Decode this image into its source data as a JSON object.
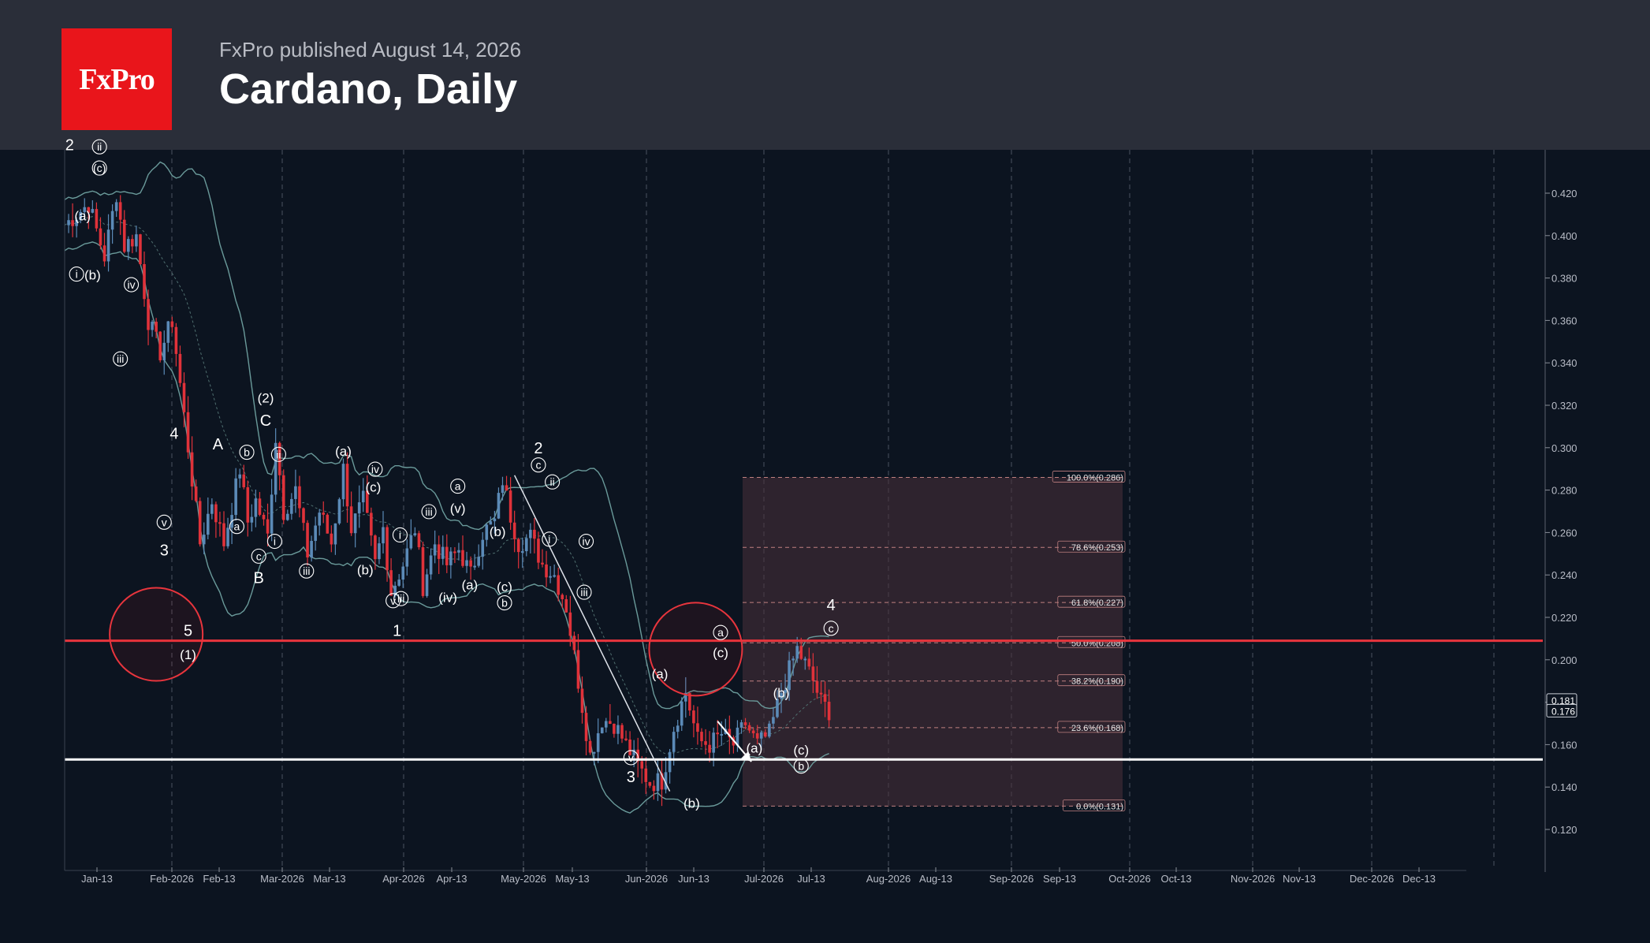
{
  "header": {
    "logo_text": "FxPro",
    "published": "FxPro published August 14, 2026",
    "title": "Cardano, Daily"
  },
  "colors": {
    "background": "#0c1420",
    "header_bg": "#2a2e39",
    "brand_red": "#e9151b",
    "bull_candle": "#5b8ab7",
    "bear_candle": "#e0323a",
    "bollinger": "#6a9a9a",
    "resistance_line": "#e8353d",
    "support_line": "#ffffff",
    "fib_box": "#4a2f3a"
  },
  "chart_data": {
    "type": "candlestick",
    "instrument": "Cardano",
    "timeframe": "Daily",
    "ylim": [
      0.105,
      0.445
    ],
    "y_ticks": [
      "0.120",
      "0.140",
      "0.160",
      "0.180",
      "0.200",
      "0.220",
      "0.240",
      "0.260",
      "0.280",
      "0.300",
      "0.320",
      "0.340",
      "0.360",
      "0.380",
      "0.400",
      "0.420"
    ],
    "x_ticks": [
      "Jan-13",
      "Feb-2026",
      "Feb-13",
      "Mar-2026",
      "Mar-13",
      "Apr-2026",
      "Apr-13",
      "May-2026",
      "May-13",
      "Jun-2026",
      "Jun-13",
      "Jul-2026",
      "Jul-13",
      "Aug-2026",
      "Aug-13",
      "Sep-2026",
      "Sep-13",
      "Oct-2026",
      "Oct-13",
      "Nov-2026",
      "Nov-13",
      "Dec-2026",
      "Dec-13"
    ],
    "price_path": [
      [
        0,
        0.405
      ],
      [
        6,
        0.415
      ],
      [
        10,
        0.39
      ],
      [
        13,
        0.42
      ],
      [
        15,
        0.395
      ],
      [
        18,
        0.4
      ],
      [
        21,
        0.36
      ],
      [
        24,
        0.345
      ],
      [
        27,
        0.36
      ],
      [
        31,
        0.3
      ],
      [
        34,
        0.255
      ],
      [
        37,
        0.275
      ],
      [
        40,
        0.255
      ],
      [
        44,
        0.29
      ],
      [
        46,
        0.265
      ],
      [
        48,
        0.275
      ],
      [
        51,
        0.258
      ],
      [
        53,
        0.305
      ],
      [
        55,
        0.27
      ],
      [
        58,
        0.28
      ],
      [
        61,
        0.25
      ],
      [
        64,
        0.27
      ],
      [
        67,
        0.255
      ],
      [
        70,
        0.29
      ],
      [
        72,
        0.262
      ],
      [
        75,
        0.275
      ],
      [
        78,
        0.245
      ],
      [
        80,
        0.262
      ],
      [
        82,
        0.232
      ],
      [
        85,
        0.245
      ],
      [
        88,
        0.262
      ],
      [
        90,
        0.235
      ],
      [
        93,
        0.255
      ],
      [
        96,
        0.245
      ],
      [
        99,
        0.252
      ],
      [
        102,
        0.24
      ],
      [
        105,
        0.26
      ],
      [
        108,
        0.265
      ],
      [
        110,
        0.285
      ],
      [
        112,
        0.268
      ],
      [
        114,
        0.255
      ],
      [
        117,
        0.258
      ],
      [
        120,
        0.245
      ],
      [
        123,
        0.24
      ],
      [
        126,
        0.225
      ],
      [
        129,
        0.19
      ],
      [
        132,
        0.155
      ],
      [
        135,
        0.172
      ],
      [
        138,
        0.17
      ],
      [
        141,
        0.16
      ],
      [
        144,
        0.15
      ],
      [
        147,
        0.142
      ],
      [
        150,
        0.143
      ],
      [
        153,
        0.168
      ],
      [
        156,
        0.185
      ],
      [
        159,
        0.162
      ],
      [
        162,
        0.16
      ],
      [
        165,
        0.165
      ],
      [
        168,
        0.16
      ],
      [
        171,
        0.17
      ],
      [
        174,
        0.16
      ],
      [
        177,
        0.165
      ],
      [
        180,
        0.185
      ],
      [
        182,
        0.195
      ],
      [
        184,
        0.205
      ],
      [
        186,
        0.198
      ],
      [
        188,
        0.19
      ],
      [
        190,
        0.18
      ],
      [
        192,
        0.176
      ]
    ],
    "last_price": "0.176",
    "prev_price": "0.181",
    "levels": {
      "resistance": 0.209,
      "support": 0.153
    },
    "fibonacci": [
      {
        "label": "100.0%(0.286)",
        "value": 0.286
      },
      {
        "label": "78.6%(0.253)",
        "value": 0.253
      },
      {
        "label": "61.8%(0.227)",
        "value": 0.227
      },
      {
        "label": "50.0%(0.208)",
        "value": 0.208
      },
      {
        "label": "38.2%(0.190)",
        "value": 0.19
      },
      {
        "label": "23.6%(0.168)",
        "value": 0.168
      },
      {
        "label": "0.0%(0.131)",
        "value": 0.131
      }
    ],
    "wave_labels": [
      {
        "text": "2",
        "d": 0.5,
        "p": 0.441,
        "c": false
      },
      {
        "text": "ii",
        "d": 3.5,
        "p": 0.44,
        "c": true
      },
      {
        "text": "(c)",
        "d": 3.5,
        "p": 0.43,
        "c": true
      },
      {
        "text": "(a)",
        "d": 1.8,
        "p": 0.408,
        "c": false
      },
      {
        "text": "i",
        "d": 1.2,
        "p": 0.38,
        "c": true
      },
      {
        "text": "(b)",
        "d": 2.8,
        "p": 0.38,
        "c": false
      },
      {
        "text": "iv",
        "d": 6.7,
        "p": 0.375,
        "c": true
      },
      {
        "text": "iii",
        "d": 5.6,
        "p": 0.34,
        "c": true
      },
      {
        "text": "4",
        "d": 11.0,
        "p": 0.305,
        "c": false
      },
      {
        "text": "v",
        "d": 10.0,
        "p": 0.263,
        "c": true
      },
      {
        "text": "3",
        "d": 10.0,
        "p": 0.25,
        "c": false
      },
      {
        "text": "5",
        "d": 12.4,
        "p": 0.212,
        "c": false
      },
      {
        "text": "(1)",
        "d": 12.4,
        "p": 0.201,
        "c": false
      },
      {
        "text": "A",
        "d": 15.4,
        "p": 0.3,
        "c": false
      },
      {
        "text": "b",
        "d": 18.3,
        "p": 0.296,
        "c": true
      },
      {
        "text": "a",
        "d": 17.3,
        "p": 0.261,
        "c": true
      },
      {
        "text": "(2)",
        "d": 20.2,
        "p": 0.322,
        "c": false
      },
      {
        "text": "C",
        "d": 20.2,
        "p": 0.311,
        "c": false
      },
      {
        "text": "ii",
        "d": 21.5,
        "p": 0.295,
        "c": true
      },
      {
        "text": "i",
        "d": 21.1,
        "p": 0.254,
        "c": true
      },
      {
        "text": "c",
        "d": 19.5,
        "p": 0.247,
        "c": true
      },
      {
        "text": "B",
        "d": 19.5,
        "p": 0.237,
        "c": false
      },
      {
        "text": "iii",
        "d": 24.3,
        "p": 0.24,
        "c": true
      },
      {
        "text": "(a)",
        "d": 28.0,
        "p": 0.297,
        "c": false
      },
      {
        "text": "iv",
        "d": 31.2,
        "p": 0.288,
        "c": true
      },
      {
        "text": "(c)",
        "d": 31.0,
        "p": 0.28,
        "c": false
      },
      {
        "text": "(b)",
        "d": 30.2,
        "p": 0.241,
        "c": false
      },
      {
        "text": "i",
        "d": 33.7,
        "p": 0.257,
        "c": true
      },
      {
        "text": "v",
        "d": 33.0,
        "p": 0.226,
        "c": true
      },
      {
        "text": "iii",
        "d": 33.8,
        "p": 0.227,
        "c": true
      },
      {
        "text": "1",
        "d": 33.4,
        "p": 0.212,
        "c": false
      },
      {
        "text": "iii",
        "d": 36.6,
        "p": 0.268,
        "c": true
      },
      {
        "text": "a",
        "d": 39.5,
        "p": 0.28,
        "c": true
      },
      {
        "text": "(v)",
        "d": 39.5,
        "p": 0.27,
        "c": false
      },
      {
        "text": "(iv)",
        "d": 38.5,
        "p": 0.228,
        "c": false
      },
      {
        "text": "(a)",
        "d": 40.7,
        "p": 0.234,
        "c": false
      },
      {
        "text": "(b)",
        "d": 43.5,
        "p": 0.259,
        "c": false
      },
      {
        "text": "(c)",
        "d": 44.2,
        "p": 0.233,
        "c": false
      },
      {
        "text": "b",
        "d": 44.2,
        "p": 0.225,
        "c": true
      },
      {
        "text": "2",
        "d": 47.6,
        "p": 0.298,
        "c": false
      },
      {
        "text": "c",
        "d": 47.6,
        "p": 0.29,
        "c": true
      },
      {
        "text": "ii",
        "d": 49.0,
        "p": 0.282,
        "c": true
      },
      {
        "text": "i",
        "d": 48.7,
        "p": 0.255,
        "c": true
      },
      {
        "text": "iv",
        "d": 52.4,
        "p": 0.254,
        "c": true
      },
      {
        "text": "iii",
        "d": 52.2,
        "p": 0.23,
        "c": true
      },
      {
        "text": "(a)",
        "d": 59.8,
        "p": 0.192,
        "c": false
      },
      {
        "text": "v",
        "d": 56.9,
        "p": 0.152,
        "c": true
      },
      {
        "text": "3",
        "d": 56.9,
        "p": 0.143,
        "c": false
      },
      {
        "text": "(b)",
        "d": 63.0,
        "p": 0.131,
        "c": false
      },
      {
        "text": "a",
        "d": 65.9,
        "p": 0.211,
        "c": true
      },
      {
        "text": "(c)",
        "d": 65.9,
        "p": 0.202,
        "c": false
      },
      {
        "text": "(a)",
        "d": 69.3,
        "p": 0.157,
        "c": false
      },
      {
        "text": "(b)",
        "d": 72.0,
        "p": 0.183,
        "c": false
      },
      {
        "text": "(c)",
        "d": 74.0,
        "p": 0.156,
        "c": false
      },
      {
        "text": "b",
        "d": 74.0,
        "p": 0.148,
        "c": true
      },
      {
        "text": "4",
        "d": 77.0,
        "p": 0.224,
        "c": false
      },
      {
        "text": "c",
        "d": 77.0,
        "p": 0.213,
        "c": true
      }
    ]
  }
}
